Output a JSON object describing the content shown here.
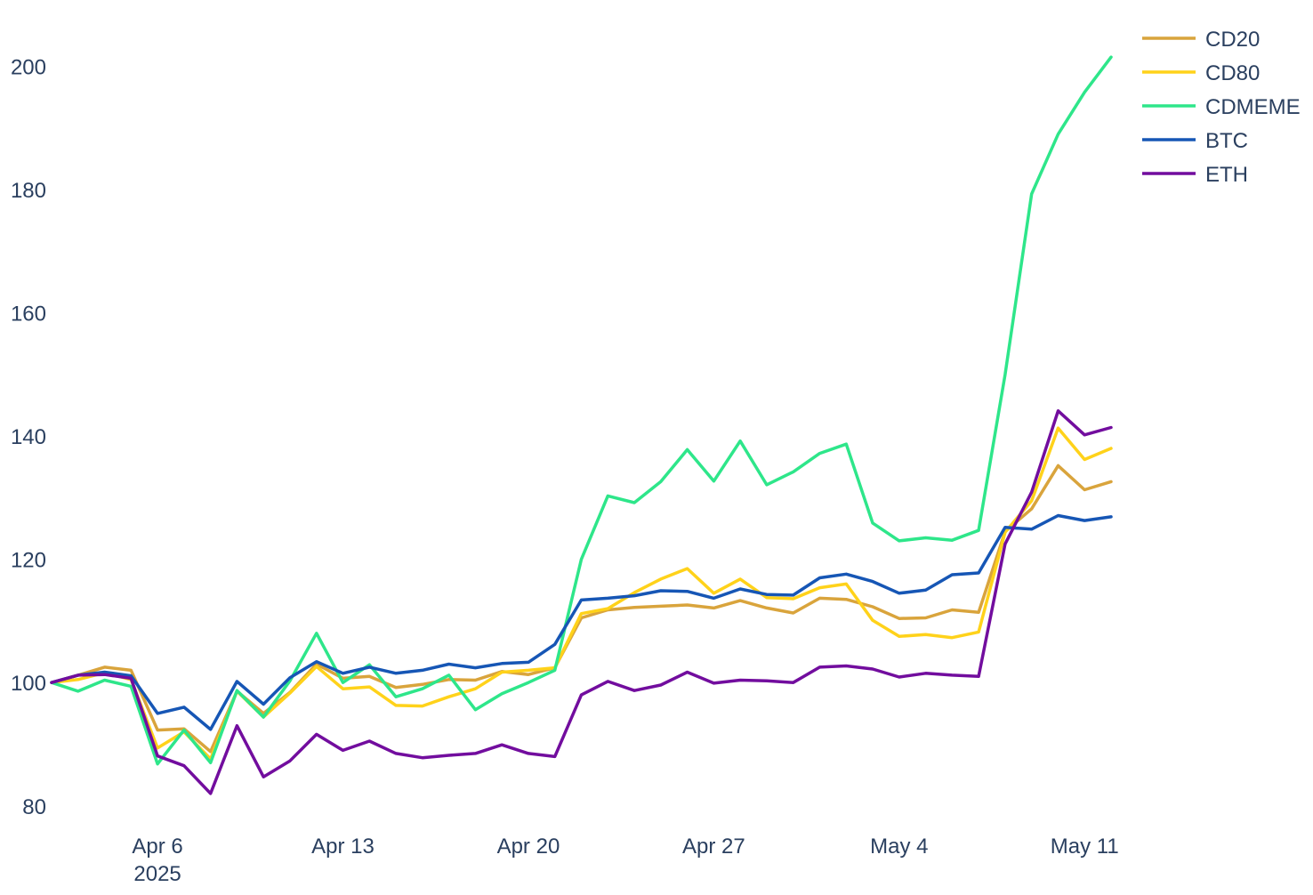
{
  "chart_data": {
    "type": "line",
    "title": "",
    "xlabel": "",
    "ylabel": "",
    "x": [
      "2025-04-02",
      "2025-04-03",
      "2025-04-04",
      "2025-04-05",
      "2025-04-06",
      "2025-04-07",
      "2025-04-08",
      "2025-04-09",
      "2025-04-10",
      "2025-04-11",
      "2025-04-12",
      "2025-04-13",
      "2025-04-14",
      "2025-04-15",
      "2025-04-16",
      "2025-04-17",
      "2025-04-18",
      "2025-04-19",
      "2025-04-20",
      "2025-04-21",
      "2025-04-22",
      "2025-04-23",
      "2025-04-24",
      "2025-04-25",
      "2025-04-26",
      "2025-04-27",
      "2025-04-28",
      "2025-04-29",
      "2025-04-30",
      "2025-05-01",
      "2025-05-02",
      "2025-05-03",
      "2025-05-04",
      "2025-05-05",
      "2025-05-06",
      "2025-05-07",
      "2025-05-08",
      "2025-05-09",
      "2025-05-10",
      "2025-05-11",
      "2025-05-12"
    ],
    "xlim": [
      "2025-04-02",
      "2025-05-12"
    ],
    "ylim": [
      76.5,
      205
    ],
    "x_ticks": [
      {
        "date": "2025-04-06",
        "label": "Apr 6",
        "sublabel": "2025"
      },
      {
        "date": "2025-04-13",
        "label": "Apr 13",
        "sublabel": ""
      },
      {
        "date": "2025-04-20",
        "label": "Apr 20",
        "sublabel": ""
      },
      {
        "date": "2025-04-27",
        "label": "Apr 27",
        "sublabel": ""
      },
      {
        "date": "2025-05-04",
        "label": "May 4",
        "sublabel": ""
      },
      {
        "date": "2025-05-11",
        "label": "May 11",
        "sublabel": ""
      }
    ],
    "y_ticks": [
      80,
      100,
      120,
      140,
      160,
      180,
      200
    ],
    "grid": false,
    "legend_position": "top-right",
    "series": [
      {
        "name": "CD20",
        "color": "#d9a43c",
        "values": [
          100,
          101.2,
          102.5,
          102,
          92.3,
          92.5,
          88.8,
          98.6,
          95,
          98.4,
          103,
          100.7,
          101,
          99.2,
          99.7,
          100.5,
          100.4,
          101.8,
          101.3,
          102.4,
          110.5,
          111.8,
          112.2,
          112.4,
          112.6,
          112.1,
          113.3,
          112.1,
          111.3,
          113.7,
          113.5,
          112.3,
          110.4,
          110.5,
          111.8,
          111.4,
          124.5,
          128.2,
          135.2,
          131.3,
          132.6
        ]
      },
      {
        "name": "CD80",
        "color": "#ffd21a",
        "values": [
          100,
          100.5,
          101.6,
          100.5,
          89.4,
          92,
          87.6,
          98.6,
          94.4,
          98.3,
          102.6,
          99,
          99.3,
          96.3,
          96.2,
          97.7,
          99,
          101.7,
          102,
          102.4,
          111.2,
          112,
          114.6,
          116.8,
          118.5,
          114.5,
          116.8,
          113.8,
          113.6,
          115.4,
          116,
          110.1,
          107.5,
          107.8,
          107.3,
          108.2,
          124.4,
          129.5,
          141.3,
          136.2,
          138
        ]
      },
      {
        "name": "CDMEME",
        "color": "#2ee68a",
        "values": [
          100,
          98.6,
          100.4,
          99.4,
          86.8,
          92.3,
          87,
          98.7,
          94.4,
          100.3,
          108,
          100,
          102.9,
          97.7,
          99,
          101.2,
          95.6,
          98.2,
          100,
          102,
          120,
          130.3,
          129.2,
          132.6,
          137.8,
          132.7,
          139.2,
          132.1,
          134.2,
          137.2,
          138.7,
          125.9,
          123,
          123.5,
          123.1,
          124.7,
          150,
          179.3,
          189,
          195.8,
          201.5
        ]
      },
      {
        "name": "BTC",
        "color": "#1656b5",
        "values": [
          100,
          101.2,
          101.7,
          101.1,
          95,
          96,
          92.4,
          100.2,
          96.5,
          100.8,
          103.4,
          101.5,
          102.5,
          101.5,
          102,
          103,
          102.4,
          103.1,
          103.3,
          106.2,
          113.4,
          113.7,
          114.1,
          114.9,
          114.8,
          113.7,
          115.2,
          114.3,
          114.2,
          117,
          117.6,
          116.4,
          114.5,
          115,
          117.5,
          117.8,
          125.2,
          124.9,
          127.1,
          126.3,
          126.9
        ]
      },
      {
        "name": "ETH",
        "color": "#720d9e",
        "values": [
          100,
          101.2,
          101.3,
          100.7,
          88.1,
          86.5,
          82,
          93,
          84.7,
          87.3,
          91.6,
          89,
          90.5,
          88.5,
          87.8,
          88.2,
          88.5,
          89.9,
          88.5,
          88,
          98,
          100.2,
          98.7,
          99.6,
          101.7,
          99.9,
          100.4,
          100.3,
          100,
          102.5,
          102.7,
          102.2,
          100.9,
          101.5,
          101.2,
          101,
          122.5,
          130.9,
          144.1,
          140.2,
          141.4
        ]
      }
    ]
  }
}
